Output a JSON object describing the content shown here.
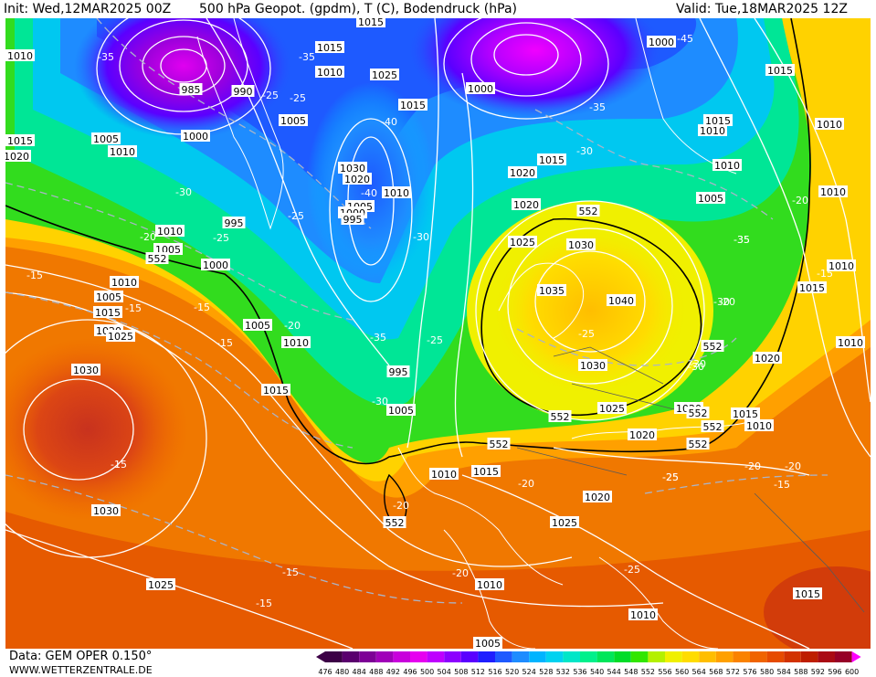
{
  "header": {
    "init": "Init: Wed,12MAR2025 00Z",
    "title": "500 hPa Geopot. (gpdm), T (C), Bodendruck (hPa)",
    "valid": "Valid: Tue,18MAR2025 12Z"
  },
  "footer": {
    "data_source": "Data: GEM OPER 0.150°",
    "website": "WWW.WETTERZENTRALE.DE"
  },
  "colorbar": {
    "ticks": [
      "476",
      "480",
      "484",
      "488",
      "492",
      "496",
      "500",
      "504",
      "508",
      "512",
      "516",
      "520",
      "524",
      "528",
      "532",
      "536",
      "540",
      "544",
      "548",
      "552",
      "556",
      "560",
      "564",
      "568",
      "572",
      "576",
      "580",
      "584",
      "588",
      "592",
      "596",
      "600"
    ],
    "colors": [
      "#3c0046",
      "#5a006e",
      "#7d0096",
      "#a000b9",
      "#c800dc",
      "#e600f0",
      "#be00ff",
      "#8c00ff",
      "#5a00ff",
      "#1e1eff",
      "#1e5aff",
      "#1e8cff",
      "#00b4ff",
      "#00d2f0",
      "#00e6c8",
      "#00f08c",
      "#00e65a",
      "#00dc28",
      "#32e600",
      "#b4f000",
      "#f0f000",
      "#ffdc00",
      "#ffbe00",
      "#ffa000",
      "#fa8200",
      "#f06400",
      "#e64b00",
      "#d23200",
      "#be1e00",
      "#aa0a14",
      "#960028"
    ]
  },
  "map": {
    "geopotential_labels": [
      "552",
      "552",
      "552",
      "552",
      "552",
      "552",
      "552",
      "552",
      "552"
    ],
    "pressure_labels": [
      "1010",
      "1015",
      "1020",
      "1005",
      "1010",
      "985",
      "990",
      "1000",
      "1005",
      "1015",
      "1010",
      "1025",
      "1015",
      "1010",
      "995",
      "1005",
      "1030",
      "1020",
      "1010",
      "1005",
      "1000",
      "995",
      "1000",
      "1010",
      "1005",
      "1015",
      "1020",
      "1025",
      "1030",
      "1030",
      "1025",
      "1015",
      "1010",
      "1005",
      "1015",
      "1020",
      "1025",
      "1030",
      "1035",
      "1040",
      "1030",
      "1025",
      "1020",
      "1015",
      "1010",
      "1005",
      "1010",
      "1020",
      "1015",
      "1020",
      "1015",
      "1010",
      "1010",
      "1020",
      "1015",
      "1010",
      "1010",
      "1015",
      "1010",
      "1000",
      "1000",
      "995",
      "1005",
      "1010",
      "1015",
      "1020",
      "1025",
      "1010",
      "1005",
      "1010",
      "1015"
    ],
    "temperature_labels": [
      "-35",
      "-35",
      "-25",
      "-40",
      "-45",
      "-35",
      "-30",
      "-25",
      "-30",
      "-20",
      "-30",
      "-25",
      "-40",
      "-30",
      "-35",
      "-20",
      "-15",
      "-15",
      "-15",
      "-15",
      "-20",
      "-25",
      "-35",
      "-30",
      "-30",
      "-25",
      "-25",
      "-25",
      "-20",
      "-20",
      "-20",
      "-25",
      "-20",
      "-15",
      "-15",
      "-15",
      "-20",
      "-15",
      "-15",
      "-20",
      "-30",
      "-25",
      "-35"
    ]
  }
}
